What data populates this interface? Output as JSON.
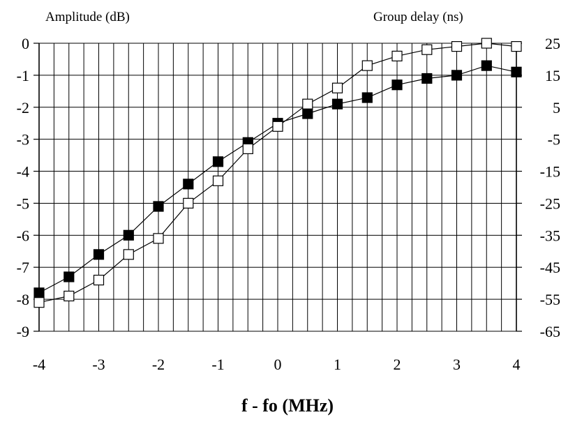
{
  "chart_data": {
    "type": "line",
    "title": "",
    "xlabel": "f - fo  (MHz)",
    "ylabel_left": "Amplitude (dB)",
    "ylabel_right": "Group delay (ns)",
    "x_ticks": [
      "-4",
      "-3",
      "-2",
      "-1",
      "0",
      "1",
      "2",
      "3",
      "4"
    ],
    "y_left_ticks": [
      "0",
      "-1",
      "-2",
      "-3",
      "-4",
      "-5",
      "-6",
      "-7",
      "-8",
      "-9"
    ],
    "y_right_ticks": [
      "25",
      "15",
      "5",
      "-5",
      "-15",
      "-25",
      "-35",
      "-45",
      "-55",
      "-65"
    ],
    "xlim": [
      -4,
      4
    ],
    "ylim_left": [
      -9,
      0
    ],
    "ylim_right": [
      -65,
      25
    ],
    "grid": true,
    "x": [
      -4,
      -3.5,
      -3,
      -2.5,
      -2,
      -1.5,
      -1,
      -0.5,
      0,
      0.5,
      1,
      1.5,
      2,
      2.5,
      3,
      3.5,
      4
    ],
    "series": [
      {
        "marker": "filled-square",
        "axis": "left",
        "values": [
          -7.8,
          -7.3,
          -6.6,
          -6.0,
          -5.1,
          -4.4,
          -3.7,
          -3.1,
          -2.5,
          -2.2,
          -1.9,
          -1.7,
          -1.3,
          -1.1,
          -1.0,
          -0.7,
          -0.9
        ]
      },
      {
        "marker": "open-square",
        "axis": "right",
        "values": [
          -56,
          -54,
          -49,
          -41,
          -36,
          -25,
          -18,
          -8,
          -1,
          6,
          11,
          18,
          21,
          23,
          24,
          25,
          24
        ]
      }
    ]
  }
}
